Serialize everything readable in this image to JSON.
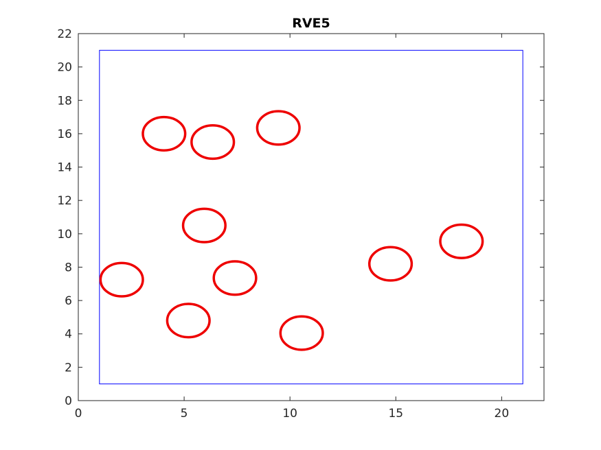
{
  "chart_data": {
    "type": "scatter",
    "title": "RVE5",
    "xlabel": "",
    "ylabel": "",
    "xlim": [
      0,
      22
    ],
    "ylim": [
      0,
      22
    ],
    "xticks": [
      0,
      5,
      10,
      15,
      20
    ],
    "yticks": [
      0,
      2,
      4,
      6,
      8,
      10,
      12,
      14,
      16,
      18,
      20,
      22
    ],
    "grid": false,
    "box": {
      "x": [
        1,
        21
      ],
      "y": [
        1,
        21
      ],
      "color": "#0000ff"
    },
    "circles": {
      "color": "#ee0000",
      "radius": 1,
      "centers": [
        {
          "x": 4.05,
          "y": 16.0
        },
        {
          "x": 6.35,
          "y": 15.5
        },
        {
          "x": 9.45,
          "y": 16.35
        },
        {
          "x": 5.95,
          "y": 10.5
        },
        {
          "x": 18.1,
          "y": 9.55
        },
        {
          "x": 14.75,
          "y": 8.2
        },
        {
          "x": 2.05,
          "y": 7.25
        },
        {
          "x": 7.4,
          "y": 7.35
        },
        {
          "x": 5.2,
          "y": 4.8
        },
        {
          "x": 10.55,
          "y": 4.05
        }
      ]
    }
  }
}
